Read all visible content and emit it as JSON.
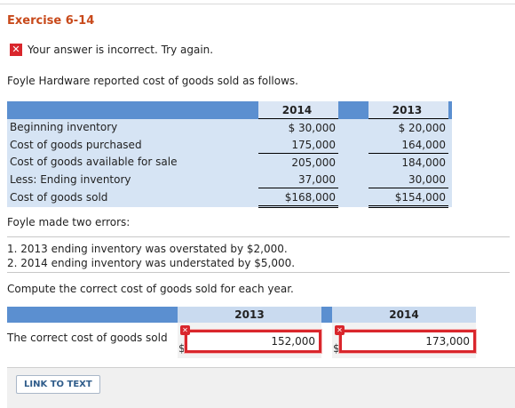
{
  "exercise_title": "Exercise 6-14",
  "error_message": "Your answer is incorrect.  Try again.",
  "intro": "Foyle Hardware reported cost of goods sold as follows.",
  "table": {
    "years": [
      "2014",
      "2013"
    ],
    "rows": [
      {
        "label": "Beginning inventory",
        "v2014": "$ 30,000",
        "v2013": "$ 20,000"
      },
      {
        "label": "Cost of goods purchased",
        "v2014": "175,000",
        "v2013": "164,000"
      },
      {
        "label": "Cost of goods available for sale",
        "v2014": "205,000",
        "v2013": "184,000"
      },
      {
        "label": "Less: Ending inventory",
        "v2014": "37,000",
        "v2013": "30,000"
      },
      {
        "label": "Cost of goods sold",
        "v2014": "$168,000",
        "v2013": "$154,000"
      }
    ]
  },
  "errors_intro": "Foyle made two errors:",
  "errors": [
    "1.  2013 ending inventory was overstated by $2,000.",
    "2.  2014 ending inventory was understated by $5,000."
  ],
  "prompt": "Compute the correct cost of goods sold for each year.",
  "answer": {
    "col_2013": "2013",
    "col_2014": "2014",
    "label": "The correct cost of goods sold",
    "currency": "$",
    "value_2013": "152,000",
    "value_2014": "173,000",
    "error_mark": "✕"
  },
  "link_to_text": "LINK TO TEXT",
  "colors": {
    "header_blue": "#5b8fd0",
    "row_blue": "#d6e4f4",
    "error_red": "#d9262c",
    "title_orange": "#c8491a"
  }
}
